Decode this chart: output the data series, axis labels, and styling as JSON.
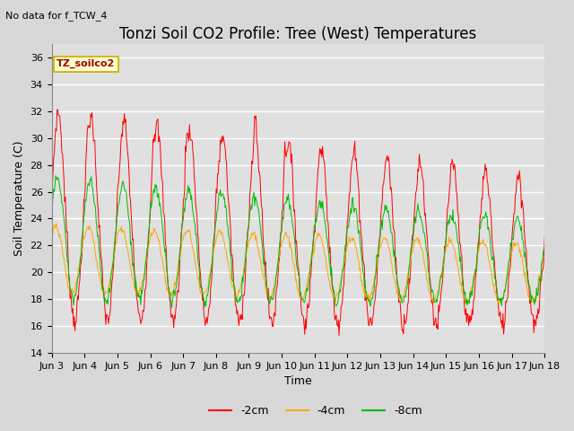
{
  "title": "Tonzi Soil CO2 Profile: Tree (West) Temperatures",
  "no_data_label": "No data for f_TCW_4",
  "legend_box_label": "TZ_soilco2",
  "xlabel": "Time",
  "ylabel": "Soil Temperature (C)",
  "ylim": [
    14,
    37
  ],
  "yticks": [
    14,
    16,
    18,
    20,
    22,
    24,
    26,
    28,
    30,
    32,
    34,
    36
  ],
  "xtick_labels": [
    "Jun 3",
    "Jun 4",
    "Jun 5",
    "Jun 6",
    "Jun 7",
    "Jun 8",
    "Jun 9",
    "Jun 10",
    "Jun 11",
    "Jun 12",
    "Jun 13",
    "Jun 14",
    "Jun 15",
    "Jun 16",
    "Jun 17",
    "Jun 18"
  ],
  "series_colors": [
    "#ff0000",
    "#ffa500",
    "#00bb00"
  ],
  "series_labels": [
    "-2cm",
    "-4cm",
    "-8cm"
  ],
  "plot_bg_color": "#e0e0e0",
  "grid_color": "#ffffff",
  "title_fontsize": 12,
  "axis_fontsize": 9,
  "tick_fontsize": 8
}
